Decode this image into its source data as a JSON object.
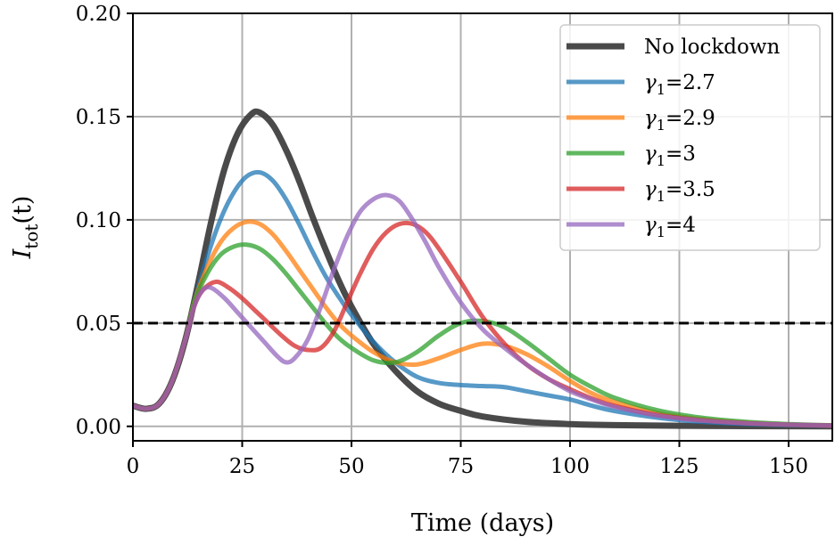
{
  "chart_data": {
    "type": "line",
    "title": "",
    "xlabel": "Time (days)",
    "ylabel": "I_tot(t)",
    "ylabel_main": "I",
    "ylabel_sub": "tot",
    "ylabel_arg": "(t)",
    "xlim": [
      0,
      160
    ],
    "ylim": [
      -0.007,
      0.2
    ],
    "xticks": [
      0,
      25,
      50,
      75,
      100,
      125,
      150
    ],
    "xtick_labels": [
      "0",
      "25",
      "50",
      "75",
      "100",
      "125",
      "150"
    ],
    "yticks": [
      0.0,
      0.05,
      0.1,
      0.15,
      0.2
    ],
    "ytick_labels": [
      "0.00",
      "0.05",
      "0.10",
      "0.15",
      "0.20"
    ],
    "grid": true,
    "legend_position": "top-right",
    "threshold": {
      "y": 0.05,
      "style": "dashed",
      "color": "#000000"
    },
    "series": [
      {
        "name": "No lockdown",
        "color": "#404040",
        "width": "thick",
        "points": [
          [
            0,
            0.01
          ],
          [
            3,
            0.0085
          ],
          [
            6,
            0.011
          ],
          [
            9,
            0.022
          ],
          [
            12,
            0.042
          ],
          [
            15,
            0.07
          ],
          [
            18,
            0.1
          ],
          [
            21,
            0.125
          ],
          [
            24,
            0.142
          ],
          [
            27,
            0.151
          ],
          [
            29,
            0.152
          ],
          [
            32,
            0.146
          ],
          [
            35,
            0.134
          ],
          [
            38,
            0.119
          ],
          [
            41,
            0.102
          ],
          [
            44,
            0.086
          ],
          [
            47,
            0.071
          ],
          [
            50,
            0.058
          ],
          [
            55,
            0.04
          ],
          [
            60,
            0.027
          ],
          [
            65,
            0.017
          ],
          [
            70,
            0.011
          ],
          [
            75,
            0.0075
          ],
          [
            80,
            0.0048
          ],
          [
            90,
            0.0022
          ],
          [
            100,
            0.0011
          ],
          [
            110,
            0.0006
          ],
          [
            125,
            0.0003
          ],
          [
            140,
            0.0001
          ],
          [
            160,
            0.0
          ]
        ]
      },
      {
        "name": "γ1=2.7",
        "label_prefix": "γ",
        "label_sub": "1",
        "label_value": "=2.7",
        "color": "#1f77b4",
        "width": "normal",
        "points": [
          [
            0,
            0.01
          ],
          [
            3,
            0.0085
          ],
          [
            6,
            0.011
          ],
          [
            9,
            0.022
          ],
          [
            12,
            0.042
          ],
          [
            14,
            0.06
          ],
          [
            17,
            0.082
          ],
          [
            20,
            0.1
          ],
          [
            23,
            0.113
          ],
          [
            26,
            0.121
          ],
          [
            29,
            0.123
          ],
          [
            32,
            0.119
          ],
          [
            35,
            0.11
          ],
          [
            38,
            0.098
          ],
          [
            41,
            0.085
          ],
          [
            44,
            0.073
          ],
          [
            47,
            0.063
          ],
          [
            50,
            0.054
          ],
          [
            55,
            0.041
          ],
          [
            60,
            0.031
          ],
          [
            65,
            0.024
          ],
          [
            70,
            0.021
          ],
          [
            75,
            0.02
          ],
          [
            80,
            0.0195
          ],
          [
            85,
            0.019
          ],
          [
            90,
            0.017
          ],
          [
            95,
            0.015
          ],
          [
            100,
            0.013
          ],
          [
            105,
            0.01
          ],
          [
            110,
            0.0075
          ],
          [
            120,
            0.0042
          ],
          [
            130,
            0.0022
          ],
          [
            140,
            0.0012
          ],
          [
            150,
            0.0006
          ],
          [
            160,
            0.0003
          ]
        ]
      },
      {
        "name": "γ1=2.9",
        "label_prefix": "γ",
        "label_sub": "1",
        "label_value": "=2.9",
        "color": "#ff7f0e",
        "width": "normal",
        "points": [
          [
            0,
            0.01
          ],
          [
            3,
            0.0085
          ],
          [
            6,
            0.011
          ],
          [
            9,
            0.022
          ],
          [
            12,
            0.042
          ],
          [
            14,
            0.06
          ],
          [
            17,
            0.077
          ],
          [
            20,
            0.089
          ],
          [
            23,
            0.096
          ],
          [
            26,
            0.099
          ],
          [
            29,
            0.098
          ],
          [
            32,
            0.093
          ],
          [
            35,
            0.085
          ],
          [
            38,
            0.076
          ],
          [
            41,
            0.067
          ],
          [
            44,
            0.058
          ],
          [
            47,
            0.05
          ],
          [
            50,
            0.044
          ],
          [
            55,
            0.036
          ],
          [
            60,
            0.031
          ],
          [
            65,
            0.03
          ],
          [
            70,
            0.033
          ],
          [
            75,
            0.037
          ],
          [
            80,
            0.04
          ],
          [
            85,
            0.039
          ],
          [
            90,
            0.035
          ],
          [
            95,
            0.029
          ],
          [
            100,
            0.022
          ],
          [
            105,
            0.016
          ],
          [
            110,
            0.012
          ],
          [
            120,
            0.0065
          ],
          [
            130,
            0.0035
          ],
          [
            140,
            0.0018
          ],
          [
            150,
            0.0009
          ],
          [
            160,
            0.0004
          ]
        ]
      },
      {
        "name": "γ1=3",
        "label_prefix": "γ",
        "label_sub": "1",
        "label_value": "=3",
        "color": "#2ca02c",
        "width": "normal",
        "points": [
          [
            0,
            0.01
          ],
          [
            3,
            0.0085
          ],
          [
            6,
            0.011
          ],
          [
            9,
            0.022
          ],
          [
            12,
            0.042
          ],
          [
            14,
            0.06
          ],
          [
            17,
            0.074
          ],
          [
            20,
            0.083
          ],
          [
            23,
            0.087
          ],
          [
            26,
            0.088
          ],
          [
            29,
            0.086
          ],
          [
            32,
            0.081
          ],
          [
            35,
            0.074
          ],
          [
            38,
            0.066
          ],
          [
            41,
            0.058
          ],
          [
            44,
            0.05
          ],
          [
            47,
            0.043
          ],
          [
            50,
            0.038
          ],
          [
            55,
            0.032
          ],
          [
            60,
            0.031
          ],
          [
            65,
            0.036
          ],
          [
            70,
            0.044
          ],
          [
            75,
            0.05
          ],
          [
            80,
            0.051
          ],
          [
            85,
            0.048
          ],
          [
            90,
            0.041
          ],
          [
            95,
            0.033
          ],
          [
            100,
            0.025
          ],
          [
            105,
            0.019
          ],
          [
            110,
            0.014
          ],
          [
            120,
            0.0078
          ],
          [
            130,
            0.0042
          ],
          [
            140,
            0.0022
          ],
          [
            150,
            0.0011
          ],
          [
            160,
            0.0005
          ]
        ]
      },
      {
        "name": "γ1=3.5",
        "label_prefix": "γ",
        "label_sub": "1",
        "label_value": "=3.5",
        "color": "#d62728",
        "width": "normal",
        "points": [
          [
            0,
            0.01
          ],
          [
            3,
            0.0085
          ],
          [
            6,
            0.011
          ],
          [
            9,
            0.022
          ],
          [
            12,
            0.042
          ],
          [
            14,
            0.058
          ],
          [
            16,
            0.066
          ],
          [
            19,
            0.07
          ],
          [
            22,
            0.067
          ],
          [
            25,
            0.062
          ],
          [
            28,
            0.056
          ],
          [
            31,
            0.05
          ],
          [
            34,
            0.044
          ],
          [
            37,
            0.039
          ],
          [
            40,
            0.037
          ],
          [
            43,
            0.038
          ],
          [
            46,
            0.046
          ],
          [
            49,
            0.06
          ],
          [
            52,
            0.074
          ],
          [
            55,
            0.086
          ],
          [
            58,
            0.094
          ],
          [
            61,
            0.098
          ],
          [
            64,
            0.098
          ],
          [
            67,
            0.094
          ],
          [
            70,
            0.086
          ],
          [
            75,
            0.07
          ],
          [
            80,
            0.053
          ],
          [
            85,
            0.04
          ],
          [
            90,
            0.03
          ],
          [
            95,
            0.023
          ],
          [
            100,
            0.018
          ],
          [
            105,
            0.0135
          ],
          [
            110,
            0.01
          ],
          [
            120,
            0.0055
          ],
          [
            130,
            0.003
          ],
          [
            140,
            0.0016
          ],
          [
            150,
            0.0008
          ],
          [
            160,
            0.0004
          ]
        ]
      },
      {
        "name": "γ1=4",
        "label_prefix": "γ",
        "label_sub": "1",
        "label_value": "=4",
        "color": "#9467bd",
        "width": "normal",
        "points": [
          [
            0,
            0.01
          ],
          [
            3,
            0.0085
          ],
          [
            6,
            0.011
          ],
          [
            9,
            0.022
          ],
          [
            12,
            0.042
          ],
          [
            14,
            0.058
          ],
          [
            16,
            0.066
          ],
          [
            18,
            0.067
          ],
          [
            21,
            0.062
          ],
          [
            24,
            0.055
          ],
          [
            27,
            0.048
          ],
          [
            30,
            0.041
          ],
          [
            33,
            0.034
          ],
          [
            35,
            0.031
          ],
          [
            37,
            0.033
          ],
          [
            40,
            0.042
          ],
          [
            43,
            0.058
          ],
          [
            46,
            0.076
          ],
          [
            49,
            0.092
          ],
          [
            52,
            0.104
          ],
          [
            55,
            0.11
          ],
          [
            58,
            0.112
          ],
          [
            61,
            0.109
          ],
          [
            64,
            0.1
          ],
          [
            67,
            0.089
          ],
          [
            70,
            0.077
          ],
          [
            75,
            0.06
          ],
          [
            80,
            0.047
          ],
          [
            85,
            0.038
          ],
          [
            90,
            0.03
          ],
          [
            95,
            0.023
          ],
          [
            100,
            0.017
          ],
          [
            105,
            0.013
          ],
          [
            110,
            0.0095
          ],
          [
            120,
            0.0052
          ],
          [
            130,
            0.0028
          ],
          [
            140,
            0.0015
          ],
          [
            150,
            0.0008
          ],
          [
            160,
            0.0004
          ]
        ]
      }
    ]
  }
}
